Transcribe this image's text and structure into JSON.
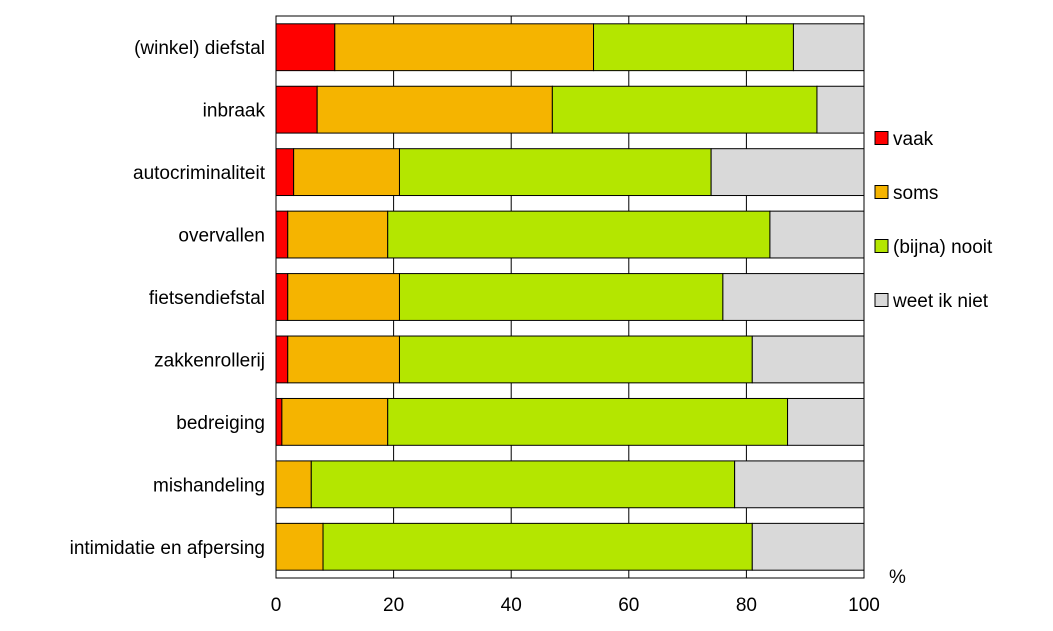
{
  "chart_data": {
    "type": "bar",
    "orientation": "horizontal",
    "stacked": true,
    "categories": [
      "(winkel) diefstal",
      "inbraak",
      "autocriminaliteit",
      "overvallen",
      "fietsendiefstal",
      "zakkenrollerij",
      "bedreiging",
      "mishandeling",
      "intimidatie en afpersing"
    ],
    "series": [
      {
        "name": "vaak",
        "color": "#ff0000",
        "values": [
          10,
          7,
          3,
          2,
          2,
          2,
          1,
          0,
          0
        ]
      },
      {
        "name": "soms",
        "color": "#f5b400",
        "values": [
          44,
          40,
          18,
          17,
          19,
          19,
          18,
          6,
          8
        ]
      },
      {
        "name": "(bijna) nooit",
        "color": "#b4e600",
        "values": [
          34,
          45,
          53,
          65,
          55,
          60,
          68,
          72,
          73
        ]
      },
      {
        "name": "weet ik niet",
        "color": "#d9d9d9",
        "values": [
          12,
          8,
          26,
          16,
          24,
          19,
          13,
          22,
          19
        ]
      }
    ],
    "xlim": [
      0,
      100
    ],
    "xticks": [
      "0",
      "20",
      "40",
      "60",
      "80",
      "100"
    ],
    "unit_label": "%",
    "grid": true,
    "legend_position": "right"
  }
}
